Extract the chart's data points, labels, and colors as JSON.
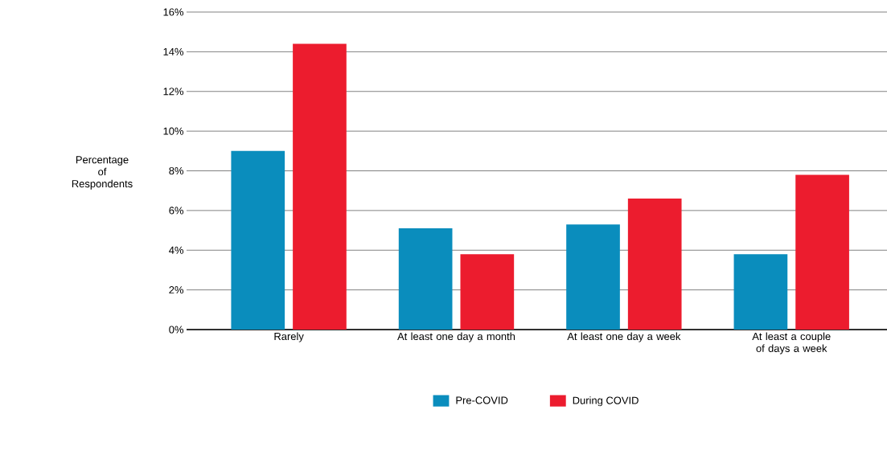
{
  "chart_data": {
    "type": "bar",
    "ylabel": "Percentage of Respondents",
    "categories": [
      "Rarely",
      "At least one day a month",
      "At least one day a week",
      "At least a couple of days a week"
    ],
    "series": [
      {
        "name": "Pre-COVID",
        "color": "#0a8dbd",
        "values": [
          9.0,
          5.1,
          5.3,
          3.8
        ]
      },
      {
        "name": "During COVID",
        "color": "#ec1c2e",
        "values": [
          14.4,
          3.8,
          6.6,
          7.8
        ]
      }
    ],
    "ylim": [
      0,
      16
    ],
    "yticks": [
      {
        "value": 0,
        "label": "0%"
      },
      {
        "value": 2,
        "label": "2%"
      },
      {
        "value": 4,
        "label": "4%"
      },
      {
        "value": 6,
        "label": "6%"
      },
      {
        "value": 8,
        "label": "8%"
      },
      {
        "value": 10,
        "label": "10%"
      },
      {
        "value": 12,
        "label": "12%"
      },
      {
        "value": 14,
        "label": "14%"
      },
      {
        "value": 16,
        "label": "16%"
      }
    ],
    "grid": "y",
    "legend": "bottom"
  }
}
